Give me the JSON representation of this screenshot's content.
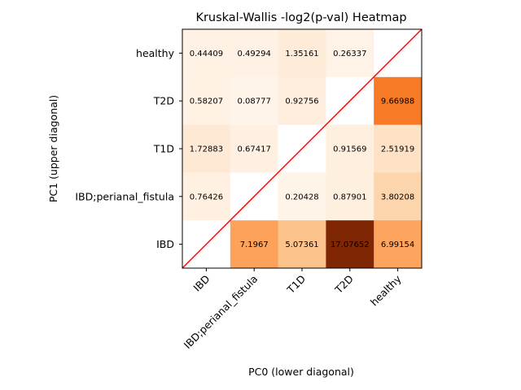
{
  "chart_data": {
    "type": "heatmap",
    "title": "Kruskal-Wallis -log2(p-val) Heatmap",
    "xlabel": "PC0 (lower diagonal)",
    "ylabel": "PC1 (upper diagonal)",
    "x_categories": [
      "IBD",
      "IBD;perianal_fistula",
      "T1D",
      "T2D",
      "healthy"
    ],
    "y_categories": [
      "healthy",
      "T2D",
      "T1D",
      "IBD;perianal_fistula",
      "IBD"
    ],
    "values": [
      [
        0.44409,
        0.49294,
        1.35161,
        0.26337,
        null
      ],
      [
        0.58207,
        0.08777,
        0.92756,
        null,
        9.66988
      ],
      [
        1.72883,
        0.67417,
        null,
        0.91569,
        2.51919
      ],
      [
        0.76426,
        null,
        0.20428,
        0.87901,
        3.80208
      ],
      [
        null,
        7.1967,
        5.07361,
        17.07652,
        6.99154
      ]
    ],
    "value_labels": [
      [
        "0.44409",
        "0.49294",
        "1.35161",
        "0.26337",
        ""
      ],
      [
        "0.58207",
        "0.08777",
        "0.92756",
        "",
        "9.66988"
      ],
      [
        "1.72883",
        "0.67417",
        "",
        "0.91569",
        "2.51919"
      ],
      [
        "0.76426",
        "",
        "0.20428",
        "0.87901",
        "3.80208"
      ],
      [
        "",
        "7.1967",
        "5.07361",
        "17.07652",
        "6.99154"
      ]
    ],
    "colormap": "Oranges",
    "colormap_stops": [
      "#fff5eb",
      "#fee6ce",
      "#fdd0a2",
      "#fdae6b",
      "#fd8d3c",
      "#f16913",
      "#d94801",
      "#a63603",
      "#7f2704"
    ],
    "vmin": 0,
    "vmax": 17.07652,
    "diagonal_line_color": "#ff0000",
    "grid": false
  }
}
